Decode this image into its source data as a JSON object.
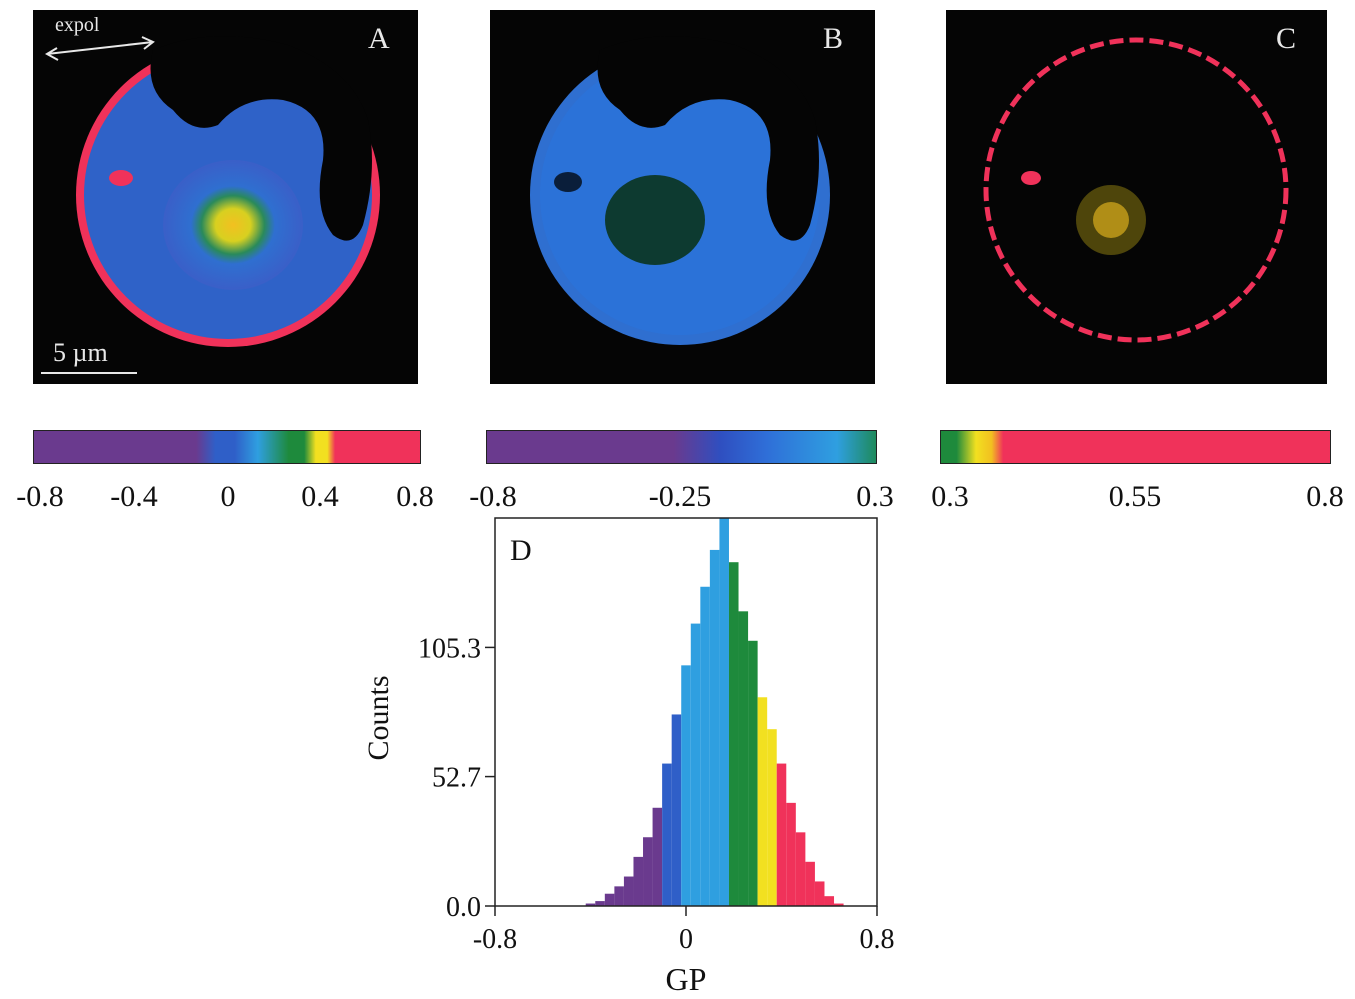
{
  "panels": {
    "A": {
      "label": "A"
    },
    "B": {
      "label": "B"
    },
    "C": {
      "label": "C"
    },
    "D": {
      "label": "D"
    }
  },
  "annotations": {
    "polarization": "expol",
    "scale_bar": "5 µm"
  },
  "colorbars": [
    {
      "panel": "A",
      "ticks": [
        "-0.8",
        "-0.4",
        "0",
        "0.4",
        "0.8"
      ],
      "range": [
        -0.8,
        0.8
      ]
    },
    {
      "panel": "B",
      "ticks": [
        "-0.8",
        "-0.25",
        "0.3"
      ],
      "range": [
        -0.8,
        0.3
      ]
    },
    {
      "panel": "C",
      "ticks": [
        "0.3",
        "0.55",
        "0.8"
      ],
      "range": [
        0.3,
        0.8
      ]
    }
  ],
  "colors": {
    "purple": "#6a3a8e",
    "blue": "#2f5fc8",
    "lightblue": "#2f9fe0",
    "green": "#1e8a3c",
    "yellow": "#f2e020",
    "red": "#f0325a",
    "background": "#050505"
  },
  "chart_data": {
    "type": "bar",
    "title": "",
    "xlabel": "GP",
    "ylabel": "Counts",
    "xlim": [
      -0.8,
      0.8
    ],
    "ylim": [
      0,
      158
    ],
    "xticks": [
      "-0.8",
      "0",
      "0.8"
    ],
    "yticks": [
      "0.0",
      "52.7",
      "105.3"
    ],
    "grid": false,
    "x": [
      -0.4,
      -0.36,
      -0.32,
      -0.28,
      -0.24,
      -0.2,
      -0.16,
      -0.12,
      -0.08,
      -0.04,
      0.0,
      0.04,
      0.08,
      0.12,
      0.16,
      0.2,
      0.24,
      0.28,
      0.32,
      0.36,
      0.4,
      0.44,
      0.48,
      0.52,
      0.56,
      0.6,
      0.64
    ],
    "values": [
      1,
      2,
      5,
      8,
      12,
      20,
      28,
      40,
      58,
      78,
      98,
      115,
      130,
      145,
      160,
      140,
      120,
      108,
      85,
      72,
      58,
      42,
      30,
      18,
      10,
      4,
      1
    ]
  }
}
